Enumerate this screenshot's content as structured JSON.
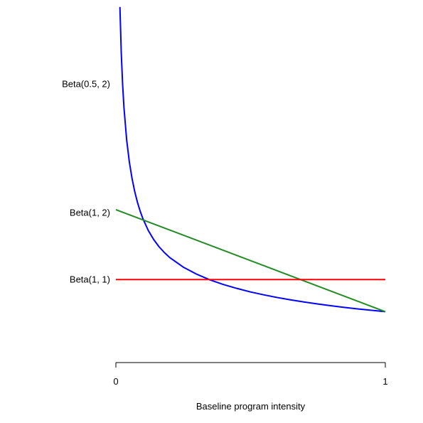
{
  "chart_data": {
    "type": "line",
    "xlabel": "Baseline program intensity",
    "ylabel": "",
    "xlim": [
      0,
      1
    ],
    "ylim": [
      0,
      2.5
    ],
    "x_ticks": [
      {
        "value": 0,
        "label": "0"
      },
      {
        "value": 1,
        "label": "1"
      }
    ],
    "grid": false,
    "legend": "none",
    "series": [
      {
        "name": "Beta(0.5, 2)",
        "label_y": 1.9,
        "color": "#0000ff",
        "x": [
          0.015,
          0.02,
          0.025,
          0.03,
          0.04,
          0.05,
          0.06,
          0.07,
          0.08,
          0.09,
          0.1,
          0.12,
          0.14,
          0.16,
          0.18,
          0.2,
          0.25,
          0.3,
          0.35,
          0.4,
          0.45,
          0.5,
          0.55,
          0.6,
          0.65,
          0.7,
          0.75,
          0.8,
          0.85,
          0.9,
          0.95,
          1.0
        ],
        "values": [
          2.45,
          2.121,
          1.897,
          1.731,
          1.499,
          1.341,
          1.223,
          1.129,
          1.053,
          0.99,
          0.937,
          0.852,
          0.787,
          0.735,
          0.693,
          0.657,
          0.589,
          0.538,
          0.497,
          0.464,
          0.436,
          0.411,
          0.39,
          0.371,
          0.354,
          0.339,
          0.325,
          0.312,
          0.3,
          0.289,
          0.28,
          0.27
        ]
      },
      {
        "name": "Beta(1, 2)",
        "label_y": 0.98,
        "color": "#228b22",
        "x": [
          0,
          1
        ],
        "values": [
          1.0,
          0.27
        ]
      },
      {
        "name": "Beta(1, 1)",
        "label_y": 0.5,
        "color": "#ff0000",
        "x": [
          0,
          1
        ],
        "values": [
          0.5,
          0.5
        ]
      }
    ]
  }
}
